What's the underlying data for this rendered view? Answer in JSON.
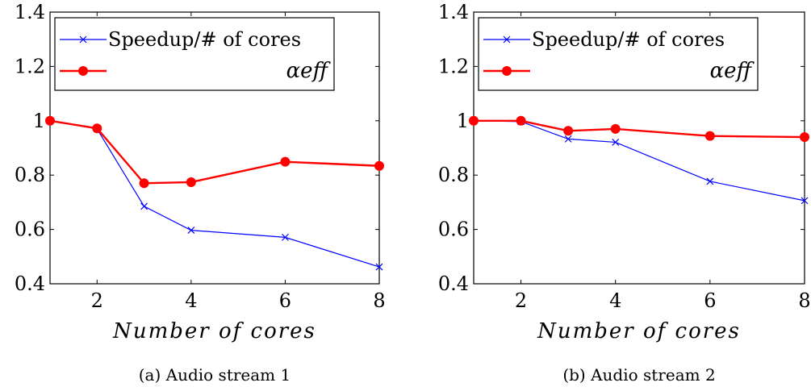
{
  "chart_data": [
    {
      "type": "line",
      "caption": "(a) Audio stream 1",
      "xlabel": "Number of cores",
      "ylabel": "",
      "xlim": [
        1,
        8
      ],
      "ylim": [
        0.4,
        1.4
      ],
      "xticks": [
        2,
        4,
        6,
        8
      ],
      "yticks": [
        0.4,
        0.6,
        0.8,
        1,
        1.2,
        1.4
      ],
      "xtick_labels": [
        "2",
        "4",
        "6",
        "8"
      ],
      "ytick_labels": [
        "0.4",
        "0.6",
        "0.8",
        "1",
        "1.2",
        "1.4"
      ],
      "legend_position": "top",
      "series": [
        {
          "name": "Speedup/# of cores",
          "color": "#0000ff",
          "marker": "x",
          "x": [
            1,
            2,
            3,
            4,
            6,
            8
          ],
          "y": [
            1.0,
            0.97,
            0.685,
            0.597,
            0.571,
            0.462
          ]
        },
        {
          "name": "αeff",
          "color": "#ff0000",
          "marker": "circle",
          "x": [
            1,
            2,
            3,
            4,
            6,
            8
          ],
          "y": [
            1.0,
            0.972,
            0.77,
            0.774,
            0.849,
            0.834
          ]
        }
      ]
    },
    {
      "type": "line",
      "caption": "(b) Audio stream 2",
      "xlabel": "Number of cores",
      "ylabel": "",
      "xlim": [
        1,
        8
      ],
      "ylim": [
        0.4,
        1.4
      ],
      "xticks": [
        2,
        4,
        6,
        8
      ],
      "yticks": [
        0.4,
        0.6,
        0.8,
        1,
        1.2,
        1.4
      ],
      "xtick_labels": [
        "2",
        "4",
        "6",
        "8"
      ],
      "ytick_labels": [
        "0.4",
        "0.6",
        "0.8",
        "1",
        "1.2",
        "1.4"
      ],
      "legend_position": "top",
      "series": [
        {
          "name": "Speedup/# of cores",
          "color": "#0000ff",
          "marker": "x",
          "x": [
            1,
            2,
            3,
            4,
            6,
            8
          ],
          "y": [
            1.0,
            0.997,
            0.933,
            0.921,
            0.777,
            0.706
          ]
        },
        {
          "name": "αeff",
          "color": "#ff0000",
          "marker": "circle",
          "x": [
            1,
            2,
            3,
            4,
            6,
            8
          ],
          "y": [
            1.0,
            1.0,
            0.963,
            0.97,
            0.944,
            0.94
          ]
        }
      ]
    }
  ]
}
